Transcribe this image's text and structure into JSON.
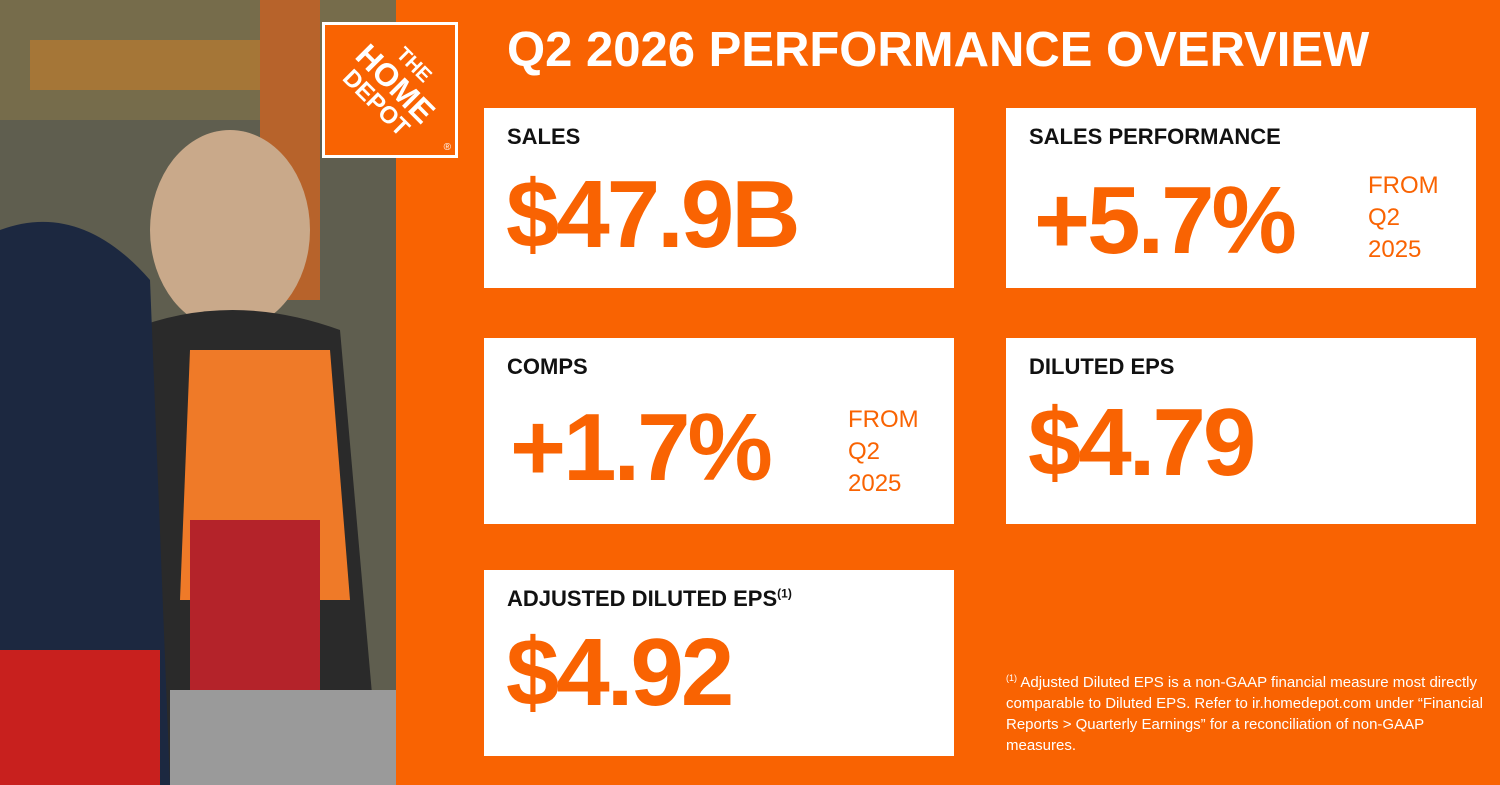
{
  "logo": {
    "lines": [
      "THE",
      "HOME",
      "DEPOT"
    ],
    "mark": "®"
  },
  "title": "Q2 2026 PERFORMANCE OVERVIEW",
  "cards": [
    {
      "label": "SALES",
      "value": "$47.9B"
    },
    {
      "label": "SALES PERFORMANCE",
      "value": "+5.7%",
      "note": [
        "FROM",
        "Q2",
        "2025"
      ]
    },
    {
      "label": "COMPS",
      "value": "+1.7%",
      "note": [
        "FROM",
        "Q2",
        "2025"
      ]
    },
    {
      "label": "DILUTED EPS",
      "value": "$4.79"
    },
    {
      "label": "ADJUSTED DILUTED EPS",
      "label_note": "(1)",
      "value": "$4.92"
    }
  ],
  "footnote": {
    "marker": "(1)",
    "text": "Adjusted Diluted EPS is a non-GAAP financial measure most directly comparable to Diluted EPS. Refer to ir.homedepot.com under “Financial Reports > Quarterly Earnings” for a reconciliation of non-GAAP measures."
  }
}
